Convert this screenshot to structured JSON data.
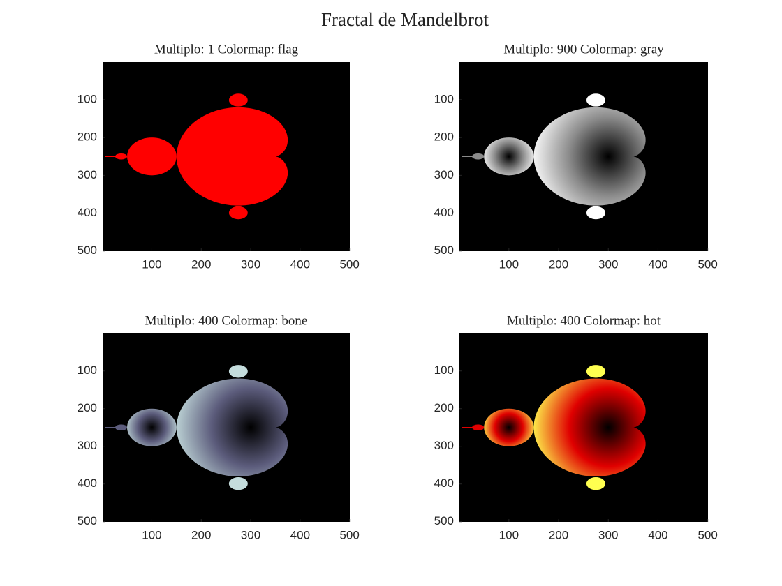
{
  "title": "Fractal de Mandelbrot",
  "chart_data": [
    {
      "type": "image",
      "title": "Multiplo: 1 Colormap: flag",
      "colors": [
        "#ff0000",
        "#ff0000",
        "#ff0000"
      ],
      "xlim": [
        0.5,
        500.5
      ],
      "ylim": [
        0.5,
        500.5
      ],
      "y_reversed": true,
      "xticks": [
        100,
        200,
        300,
        400,
        500
      ],
      "yticks": [
        100,
        200,
        300,
        400,
        500
      ]
    },
    {
      "type": "image",
      "title": "Multiplo: 900 Colormap: gray",
      "colors": [
        "#000000",
        "#8a8a8a",
        "#ffffff"
      ],
      "xlim": [
        0.5,
        500.5
      ],
      "ylim": [
        0.5,
        500.5
      ],
      "y_reversed": true,
      "xticks": [
        100,
        200,
        300,
        400,
        500
      ],
      "yticks": [
        100,
        200,
        300,
        400,
        500
      ]
    },
    {
      "type": "image",
      "title": "Multiplo: 400 Colormap: bone",
      "colors": [
        "#000000",
        "#5c5c7c",
        "#c4dcdc"
      ],
      "xlim": [
        0.5,
        500.5
      ],
      "ylim": [
        0.5,
        500.5
      ],
      "y_reversed": true,
      "xticks": [
        100,
        200,
        300,
        400,
        500
      ],
      "yticks": [
        100,
        200,
        300,
        400,
        500
      ]
    },
    {
      "type": "image",
      "title": "Multiplo: 400 Colormap: hot",
      "colors": [
        "#000000",
        "#e00000",
        "#ffff50"
      ],
      "xlim": [
        0.5,
        500.5
      ],
      "ylim": [
        0.5,
        500.5
      ],
      "y_reversed": true,
      "xticks": [
        100,
        200,
        300,
        400,
        500
      ],
      "yticks": [
        100,
        200,
        300,
        400,
        500
      ]
    }
  ]
}
